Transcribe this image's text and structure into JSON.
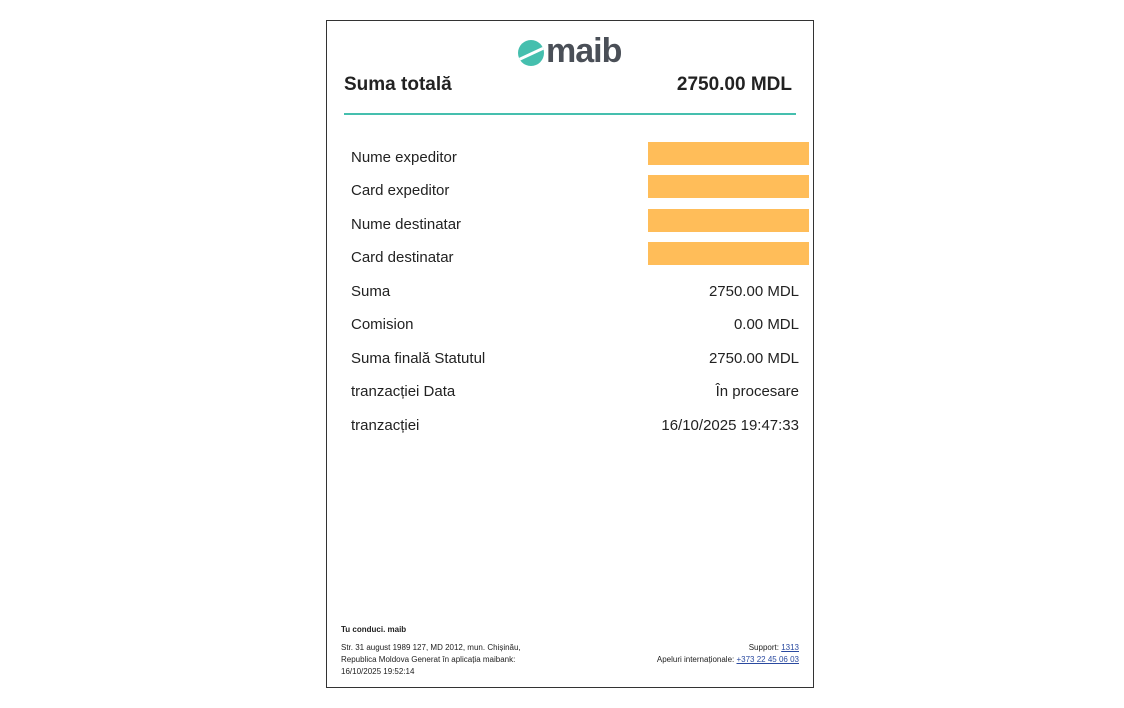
{
  "logo": {
    "text": "maib",
    "color": "#45bfae"
  },
  "summary": {
    "label": "Suma totală",
    "value": "2750.00 MDL"
  },
  "rows": [
    {
      "label": "Nume expeditor",
      "redacted": true
    },
    {
      "label": "Card expeditor",
      "redacted": true
    },
    {
      "label": "Nume destinatar",
      "redacted": true
    },
    {
      "label": "Card destinatar",
      "redacted": true
    },
    {
      "label": "Suma",
      "value": "2750.00 MDL"
    },
    {
      "label": "Comision",
      "value": "0.00 MDL"
    },
    {
      "label": "Suma finală Statutul",
      "value": "2750.00 MDL"
    },
    {
      "label": "tranzacției Data",
      "value": "În procesare"
    },
    {
      "label": "tranzacției",
      "value": "16/10/2025 19:47:33"
    }
  ],
  "redaction_color": "#ffbd59",
  "footer": {
    "title": "Tu conduci. maib",
    "address": "Str. 31 august 1989 127, MD 2012, mun. Chișinău, Republica Moldova Generat în aplicația maibank: 16/10/2025 19:52:14",
    "support_label": "Support:",
    "support_number": "1313",
    "intl_label": "Apeluri internaționale:",
    "intl_number": "+373 22 45 06 03"
  }
}
